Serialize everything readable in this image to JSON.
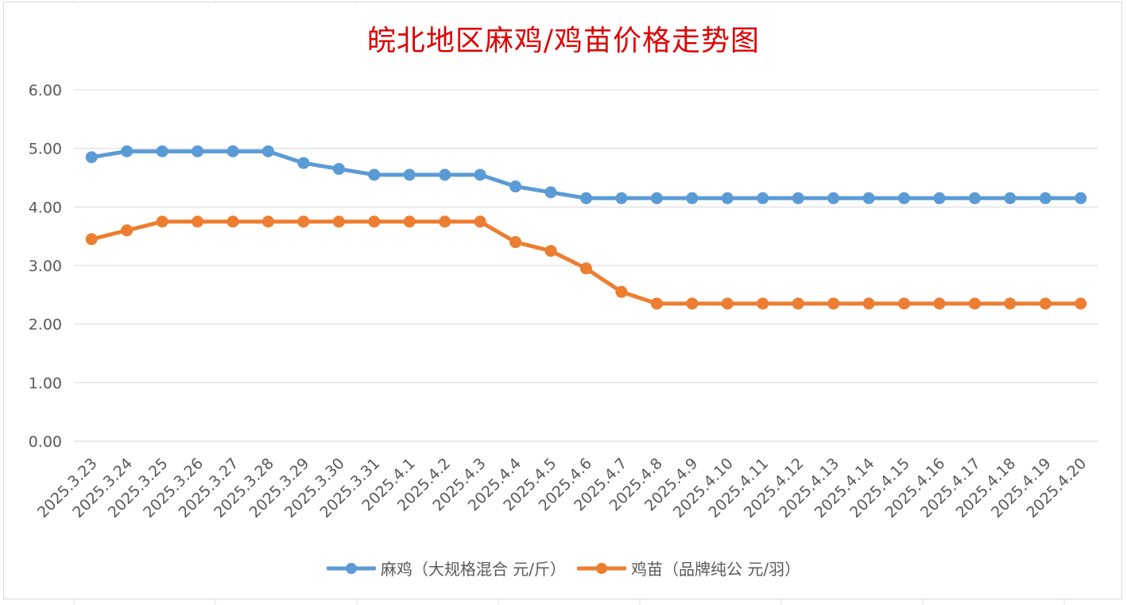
{
  "chart_data": {
    "type": "line",
    "title": "皖北地区麻鸡/鸡苗价格走势图",
    "xlabel": "",
    "ylabel": "",
    "ylim": [
      0,
      6
    ],
    "yticks": [
      "0.00",
      "1.00",
      "2.00",
      "3.00",
      "4.00",
      "5.00",
      "6.00"
    ],
    "grid": true,
    "legend_position": "bottom",
    "categories": [
      "2025.3.23",
      "2025.3.24",
      "2025.3.25",
      "2025.3.26",
      "2025.3.27",
      "2025.3.28",
      "2025.3.29",
      "2025.3.30",
      "2025.3.31",
      "2025.4.1",
      "2025.4.2",
      "2025.4.3",
      "2025.4.4",
      "2025.4.5",
      "2025.4.6",
      "2025.4.7",
      "2025.4.8",
      "2025.4.9",
      "2025.4.10",
      "2025.4.11",
      "2025.4.12",
      "2025.4.13",
      "2025.4.14",
      "2025.4.15",
      "2025.4.16",
      "2025.4.17",
      "2025.4.18",
      "2025.4.19",
      "2025.4.20"
    ],
    "series": [
      {
        "name": "麻鸡（大规格混合 元/斤）",
        "color": "#5b9bd5",
        "values": [
          4.85,
          4.95,
          4.95,
          4.95,
          4.95,
          4.95,
          4.75,
          4.65,
          4.55,
          4.55,
          4.55,
          4.55,
          4.35,
          4.25,
          4.15,
          4.15,
          4.15,
          4.15,
          4.15,
          4.15,
          4.15,
          4.15,
          4.15,
          4.15,
          4.15,
          4.15,
          4.15,
          4.15,
          4.15
        ]
      },
      {
        "name": "鸡苗（品牌纯公 元/羽）",
        "color": "#ed7d31",
        "values": [
          3.45,
          3.6,
          3.75,
          3.75,
          3.75,
          3.75,
          3.75,
          3.75,
          3.75,
          3.75,
          3.75,
          3.75,
          3.4,
          3.25,
          2.95,
          2.55,
          2.35,
          2.35,
          2.35,
          2.35,
          2.35,
          2.35,
          2.35,
          2.35,
          2.35,
          2.35,
          2.35,
          2.35,
          2.35
        ]
      }
    ]
  }
}
